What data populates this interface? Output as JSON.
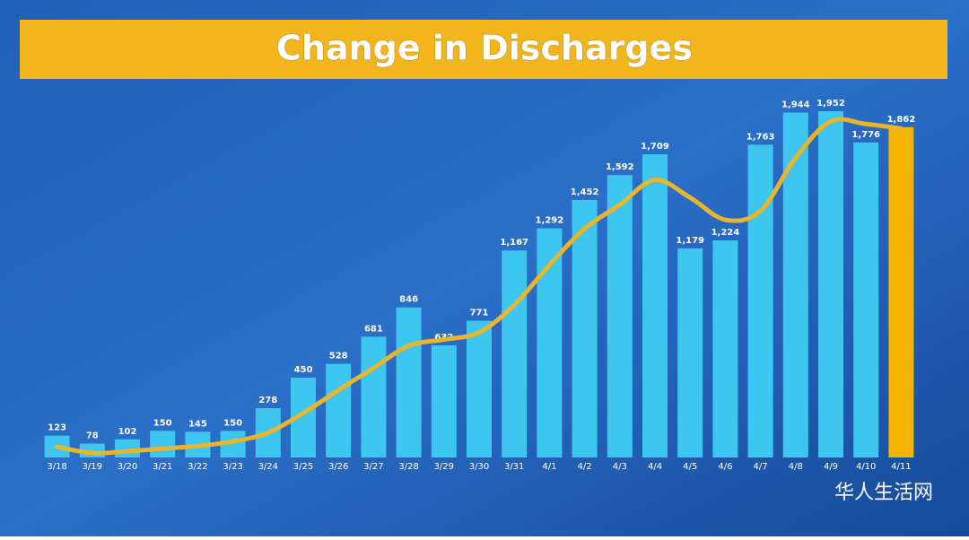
{
  "chart_data": {
    "type": "bar",
    "title": "Change in Discharges",
    "categories": [
      "3/18",
      "3/19",
      "3/20",
      "3/21",
      "3/22",
      "3/23",
      "3/24",
      "3/25",
      "3/26",
      "3/27",
      "3/28",
      "3/29",
      "3/30",
      "3/31",
      "4/1",
      "4/2",
      "4/3",
      "4/4",
      "4/5",
      "4/6",
      "4/7",
      "4/8",
      "4/9",
      "4/10",
      "4/11"
    ],
    "values": [
      123,
      78,
      102,
      150,
      145,
      150,
      278,
      450,
      528,
      681,
      846,
      632,
      771,
      1167,
      1292,
      1452,
      1592,
      1709,
      1179,
      1224,
      1763,
      1944,
      1952,
      1776,
      1862
    ],
    "value_labels": [
      "123",
      "78",
      "102",
      "150",
      "145",
      "150",
      "278",
      "450",
      "528",
      "681",
      "846",
      "632",
      "771",
      "1,167",
      "1,292",
      "1,452",
      "1,592",
      "1,709",
      "1,179",
      "1,224",
      "1,763",
      "1,944",
      "1,952",
      "1,776",
      "1,862"
    ],
    "colors": [
      "#3cc6f0",
      "#3cc6f0",
      "#3cc6f0",
      "#3cc6f0",
      "#3cc6f0",
      "#3cc6f0",
      "#3cc6f0",
      "#3cc6f0",
      "#3cc6f0",
      "#3cc6f0",
      "#3cc6f0",
      "#3cc6f0",
      "#3cc6f0",
      "#3cc6f0",
      "#3cc6f0",
      "#3cc6f0",
      "#3cc6f0",
      "#3cc6f0",
      "#3cc6f0",
      "#3cc6f0",
      "#3cc6f0",
      "#3cc6f0",
      "#3cc6f0",
      "#3cc6f0",
      "#f5b400"
    ],
    "line": {
      "color": "#e9b52c",
      "values": [
        60,
        25,
        35,
        50,
        65,
        90,
        140,
        250,
        380,
        505,
        630,
        665,
        705,
        860,
        1085,
        1290,
        1425,
        1565,
        1465,
        1340,
        1390,
        1690,
        1895,
        1880,
        1855
      ]
    }
  },
  "watermark": "华人生活网"
}
